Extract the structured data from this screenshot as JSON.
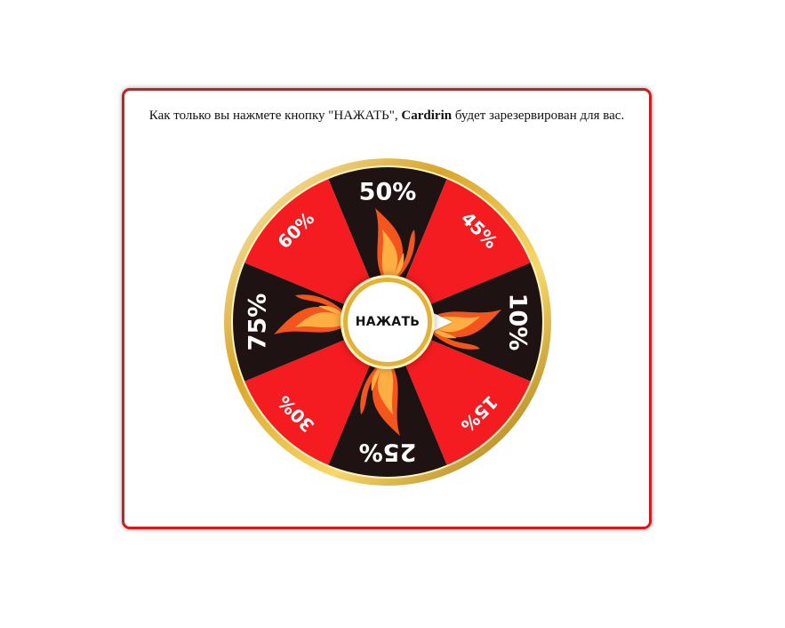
{
  "modal": {
    "message_prefix": "Как только вы нажмете кнопку \"НАЖАТЬ\", ",
    "message_bold": "Cardirin",
    "message_suffix": " будет зарезервирован для вас."
  },
  "wheel": {
    "button_label": "НАЖАТЬ",
    "segments": [
      {
        "label": "50%",
        "color": "#1f1212"
      },
      {
        "label": "45%",
        "color": "#f41c21"
      },
      {
        "label": "10%",
        "color": "#1f1212"
      },
      {
        "label": "15%",
        "color": "#f41c21"
      },
      {
        "label": "25%",
        "color": "#1f1212"
      },
      {
        "label": "30%",
        "color": "#f41c21"
      },
      {
        "label": "75%",
        "color": "#1f1212"
      },
      {
        "label": "60%",
        "color": "#f41c21"
      }
    ],
    "rim_color": "#d9a52a",
    "flame_color": "#ff5a1f"
  }
}
